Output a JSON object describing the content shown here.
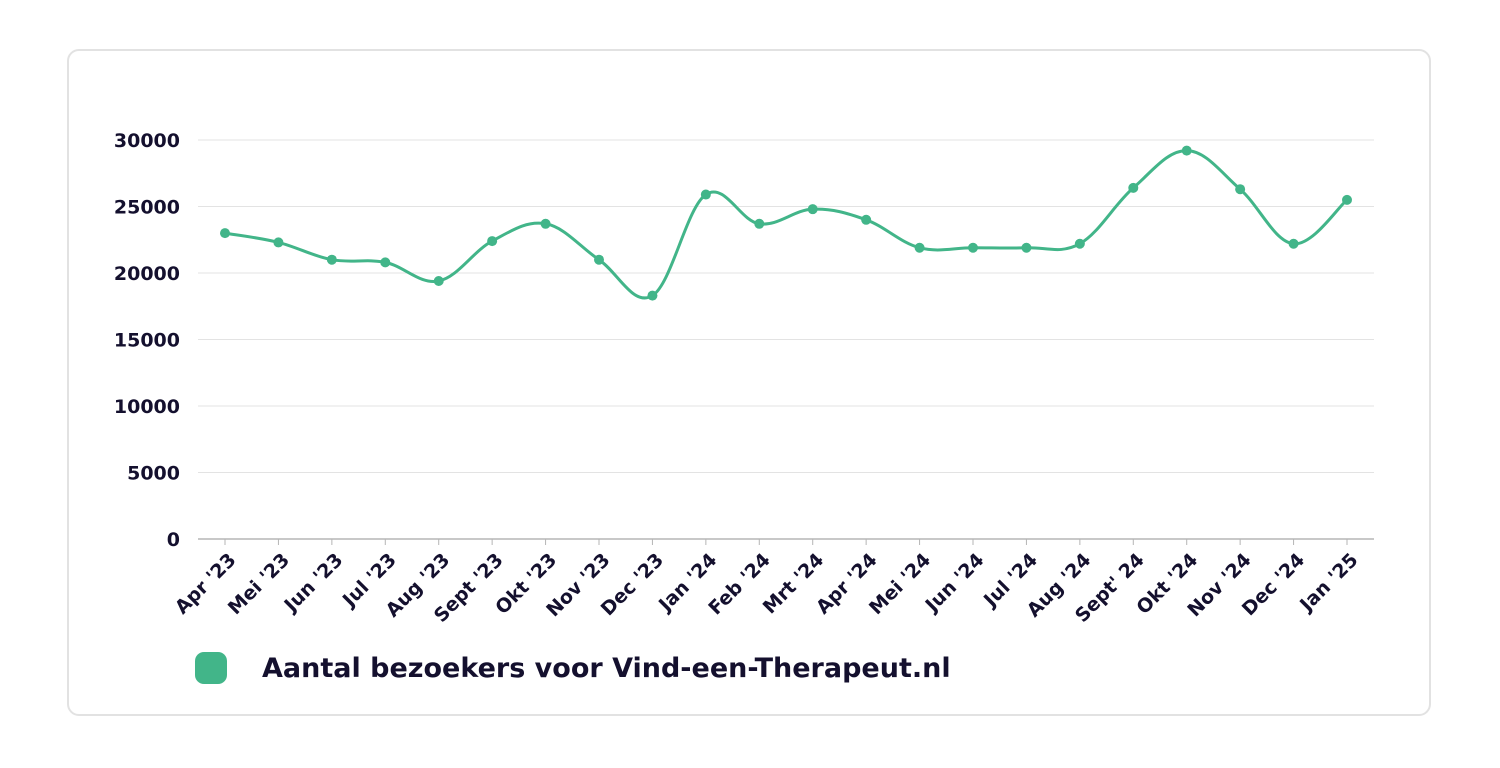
{
  "chart_data": {
    "type": "line",
    "categories": [
      "Apr '23",
      "Mei '23",
      "Jun '23",
      "Jul '23",
      "Aug '23",
      "Sept '23",
      "Okt '23",
      "Nov '23",
      "Dec '23",
      "Jan '24",
      "Feb '24",
      "Mrt '24",
      "Apr '24",
      "Mei '24",
      "Jun '24",
      "Jul '24",
      "Aug '24",
      "Sept' 24",
      "Okt '24",
      "Nov '24",
      "Dec '24",
      "Jan '25"
    ],
    "series": [
      {
        "name": "Aantal bezoekers voor Vind-een-Therapeut.nl",
        "values": [
          23000,
          22300,
          21000,
          20800,
          19400,
          22400,
          23700,
          21000,
          18300,
          25900,
          23700,
          24800,
          24000,
          21900,
          21900,
          21900,
          22200,
          26400,
          29200,
          26300,
          22200,
          25500
        ],
        "color": "#42b589"
      }
    ],
    "yticks": [
      0,
      5000,
      10000,
      15000,
      20000,
      25000,
      30000
    ],
    "ylim": [
      0,
      30000
    ],
    "grid": true,
    "legend_position": "bottom-left",
    "title": "",
    "xlabel": "",
    "ylabel": ""
  },
  "colors": {
    "line": "#42b589",
    "grid": "#e3e3e3",
    "axis": "#b5b5b5",
    "text": "#14102e"
  }
}
